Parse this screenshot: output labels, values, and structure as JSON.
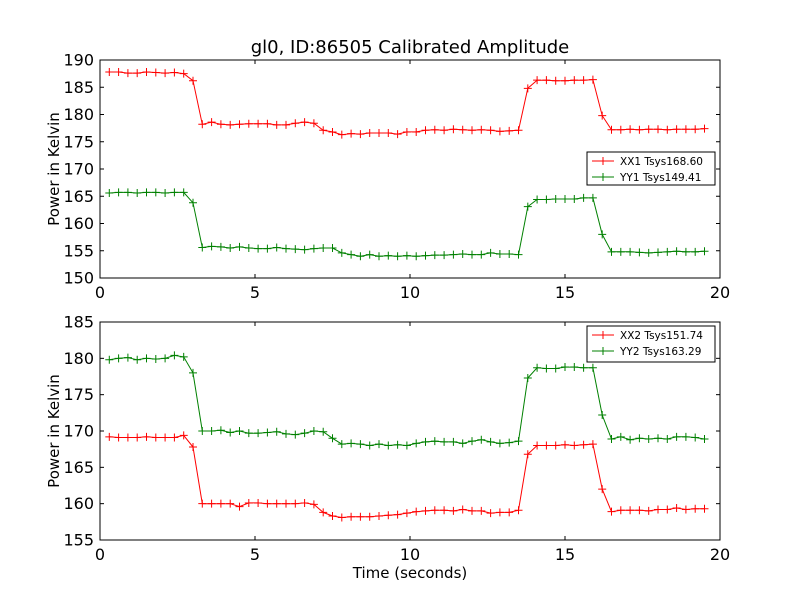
{
  "figure": {
    "title": "gl0, ID:86505 Calibrated Amplitude"
  },
  "colors": {
    "xx": "#ff0000",
    "yy": "#008000"
  },
  "chart_data": [
    {
      "type": "line",
      "title": "gl0, ID:86505 Calibrated Amplitude",
      "xlabel": "",
      "ylabel": "Power in Kelvin",
      "xlim": [
        0,
        20
      ],
      "ylim": [
        150,
        190
      ],
      "xticks": [
        "0",
        "5",
        "10",
        "15",
        "20"
      ],
      "yticks": [
        "150",
        "155",
        "160",
        "165",
        "170",
        "175",
        "180",
        "185",
        "190"
      ],
      "legend_position": "center-right",
      "marker": "plus",
      "series": [
        {
          "name": "XX1 Tsys168.60",
          "color": "#ff0000",
          "x": [
            0.3,
            0.6,
            0.9,
            1.2,
            1.5,
            1.8,
            2.1,
            2.4,
            2.7,
            3.0,
            3.3,
            3.6,
            3.9,
            4.2,
            4.5,
            4.8,
            5.1,
            5.4,
            5.7,
            6.0,
            6.3,
            6.6,
            6.9,
            7.2,
            7.5,
            7.8,
            8.1,
            8.4,
            8.7,
            9.0,
            9.3,
            9.6,
            9.9,
            10.2,
            10.5,
            10.8,
            11.1,
            11.4,
            11.7,
            12.0,
            12.3,
            12.6,
            12.9,
            13.2,
            13.5,
            13.8,
            14.1,
            14.4,
            14.7,
            15.0,
            15.3,
            15.6,
            15.9,
            16.2,
            16.5,
            16.8,
            17.1,
            17.4,
            17.7,
            18.0,
            18.3,
            18.6,
            18.9,
            19.2,
            19.5
          ],
          "y": [
            187.8,
            187.8,
            187.6,
            187.6,
            187.8,
            187.7,
            187.6,
            187.7,
            187.5,
            186.2,
            178.2,
            178.6,
            178.2,
            178.1,
            178.2,
            178.3,
            178.3,
            178.3,
            178.1,
            178.1,
            178.4,
            178.6,
            178.4,
            177.1,
            176.8,
            176.3,
            176.5,
            176.4,
            176.6,
            176.6,
            176.6,
            176.4,
            176.8,
            176.8,
            177.1,
            177.2,
            177.1,
            177.3,
            177.2,
            177.1,
            177.2,
            177.1,
            176.9,
            177.0,
            177.1,
            184.8,
            186.3,
            186.3,
            186.2,
            186.2,
            186.3,
            186.3,
            186.4,
            179.8,
            177.2,
            177.2,
            177.3,
            177.2,
            177.3,
            177.3,
            177.2,
            177.3,
            177.3,
            177.3,
            177.4
          ]
        },
        {
          "name": "YY1 Tsys149.41",
          "color": "#008000",
          "x": [
            0.3,
            0.6,
            0.9,
            1.2,
            1.5,
            1.8,
            2.1,
            2.4,
            2.7,
            3.0,
            3.3,
            3.6,
            3.9,
            4.2,
            4.5,
            4.8,
            5.1,
            5.4,
            5.7,
            6.0,
            6.3,
            6.6,
            6.9,
            7.2,
            7.5,
            7.8,
            8.1,
            8.4,
            8.7,
            9.0,
            9.3,
            9.6,
            9.9,
            10.2,
            10.5,
            10.8,
            11.1,
            11.4,
            11.7,
            12.0,
            12.3,
            12.6,
            12.9,
            13.2,
            13.5,
            13.8,
            14.1,
            14.4,
            14.7,
            15.0,
            15.3,
            15.6,
            15.9,
            16.2,
            16.5,
            16.8,
            17.1,
            17.4,
            17.7,
            18.0,
            18.3,
            18.6,
            18.9,
            19.2,
            19.5
          ],
          "y": [
            165.6,
            165.7,
            165.7,
            165.6,
            165.7,
            165.7,
            165.6,
            165.7,
            165.7,
            163.8,
            155.6,
            155.8,
            155.7,
            155.5,
            155.7,
            155.5,
            155.4,
            155.4,
            155.6,
            155.4,
            155.3,
            155.2,
            155.4,
            155.5,
            155.5,
            154.6,
            154.3,
            154.0,
            154.3,
            154.0,
            154.1,
            154.0,
            154.1,
            154.0,
            154.1,
            154.2,
            154.2,
            154.3,
            154.4,
            154.3,
            154.3,
            154.6,
            154.4,
            154.4,
            154.3,
            163.1,
            164.4,
            164.4,
            164.5,
            164.5,
            164.5,
            164.7,
            164.7,
            158.0,
            154.8,
            154.8,
            154.8,
            154.7,
            154.6,
            154.7,
            154.8,
            154.9,
            154.8,
            154.8,
            154.9
          ]
        }
      ]
    },
    {
      "type": "line",
      "title": "",
      "xlabel": "Time (seconds)",
      "ylabel": "Power in Kelvin",
      "xlim": [
        0,
        20
      ],
      "ylim": [
        155,
        185
      ],
      "xticks": [
        "0",
        "5",
        "10",
        "15",
        "20"
      ],
      "yticks": [
        "155",
        "160",
        "165",
        "170",
        "175",
        "180",
        "185"
      ],
      "legend_position": "top-right",
      "marker": "plus",
      "series": [
        {
          "name": "XX2 Tsys151.74",
          "color": "#ff0000",
          "x": [
            0.3,
            0.6,
            0.9,
            1.2,
            1.5,
            1.8,
            2.1,
            2.4,
            2.7,
            3.0,
            3.3,
            3.6,
            3.9,
            4.2,
            4.5,
            4.8,
            5.1,
            5.4,
            5.7,
            6.0,
            6.3,
            6.6,
            6.9,
            7.2,
            7.5,
            7.8,
            8.1,
            8.4,
            8.7,
            9.0,
            9.3,
            9.6,
            9.9,
            10.2,
            10.5,
            10.8,
            11.1,
            11.4,
            11.7,
            12.0,
            12.3,
            12.6,
            12.9,
            13.2,
            13.5,
            13.8,
            14.1,
            14.4,
            14.7,
            15.0,
            15.3,
            15.6,
            15.9,
            16.2,
            16.5,
            16.8,
            17.1,
            17.4,
            17.7,
            18.0,
            18.3,
            18.6,
            18.9,
            19.2,
            19.5
          ],
          "y": [
            169.2,
            169.1,
            169.1,
            169.1,
            169.2,
            169.1,
            169.1,
            169.1,
            169.4,
            167.8,
            160.0,
            160.0,
            160.0,
            160.0,
            159.6,
            160.1,
            160.1,
            160.0,
            160.0,
            160.0,
            160.0,
            160.1,
            159.9,
            158.8,
            158.3,
            158.1,
            158.2,
            158.2,
            158.2,
            158.3,
            158.4,
            158.5,
            158.7,
            158.9,
            159.0,
            159.1,
            159.1,
            159.0,
            159.2,
            159.0,
            159.0,
            158.7,
            158.8,
            158.8,
            159.1,
            166.8,
            168.0,
            168.0,
            168.0,
            168.1,
            168.0,
            168.1,
            168.2,
            162.0,
            158.9,
            159.1,
            159.1,
            159.1,
            159.0,
            159.2,
            159.2,
            159.4,
            159.2,
            159.3,
            159.3
          ]
        },
        {
          "name": "YY2 Tsys163.29",
          "color": "#008000",
          "x": [
            0.3,
            0.6,
            0.9,
            1.2,
            1.5,
            1.8,
            2.1,
            2.4,
            2.7,
            3.0,
            3.3,
            3.6,
            3.9,
            4.2,
            4.5,
            4.8,
            5.1,
            5.4,
            5.7,
            6.0,
            6.3,
            6.6,
            6.9,
            7.2,
            7.5,
            7.8,
            8.1,
            8.4,
            8.7,
            9.0,
            9.3,
            9.6,
            9.9,
            10.2,
            10.5,
            10.8,
            11.1,
            11.4,
            11.7,
            12.0,
            12.3,
            12.6,
            12.9,
            13.2,
            13.5,
            13.8,
            14.1,
            14.4,
            14.7,
            15.0,
            15.3,
            15.6,
            15.9,
            16.2,
            16.5,
            16.8,
            17.1,
            17.4,
            17.7,
            18.0,
            18.3,
            18.6,
            18.9,
            19.2,
            19.5
          ],
          "y": [
            179.8,
            180.0,
            180.1,
            179.8,
            180.0,
            179.9,
            180.0,
            180.4,
            180.2,
            178.0,
            170.0,
            170.0,
            170.1,
            169.8,
            170.0,
            169.7,
            169.7,
            169.8,
            169.9,
            169.6,
            169.5,
            169.7,
            170.0,
            169.9,
            169.0,
            168.2,
            168.3,
            168.2,
            168.0,
            168.2,
            168.0,
            168.1,
            168.0,
            168.3,
            168.5,
            168.6,
            168.5,
            168.5,
            168.3,
            168.6,
            168.8,
            168.5,
            168.3,
            168.4,
            168.6,
            177.3,
            178.7,
            178.6,
            178.6,
            178.8,
            178.8,
            178.7,
            178.7,
            172.2,
            168.9,
            169.2,
            168.8,
            169.0,
            168.9,
            169.0,
            168.9,
            169.2,
            169.2,
            169.1,
            168.9
          ]
        }
      ]
    }
  ]
}
